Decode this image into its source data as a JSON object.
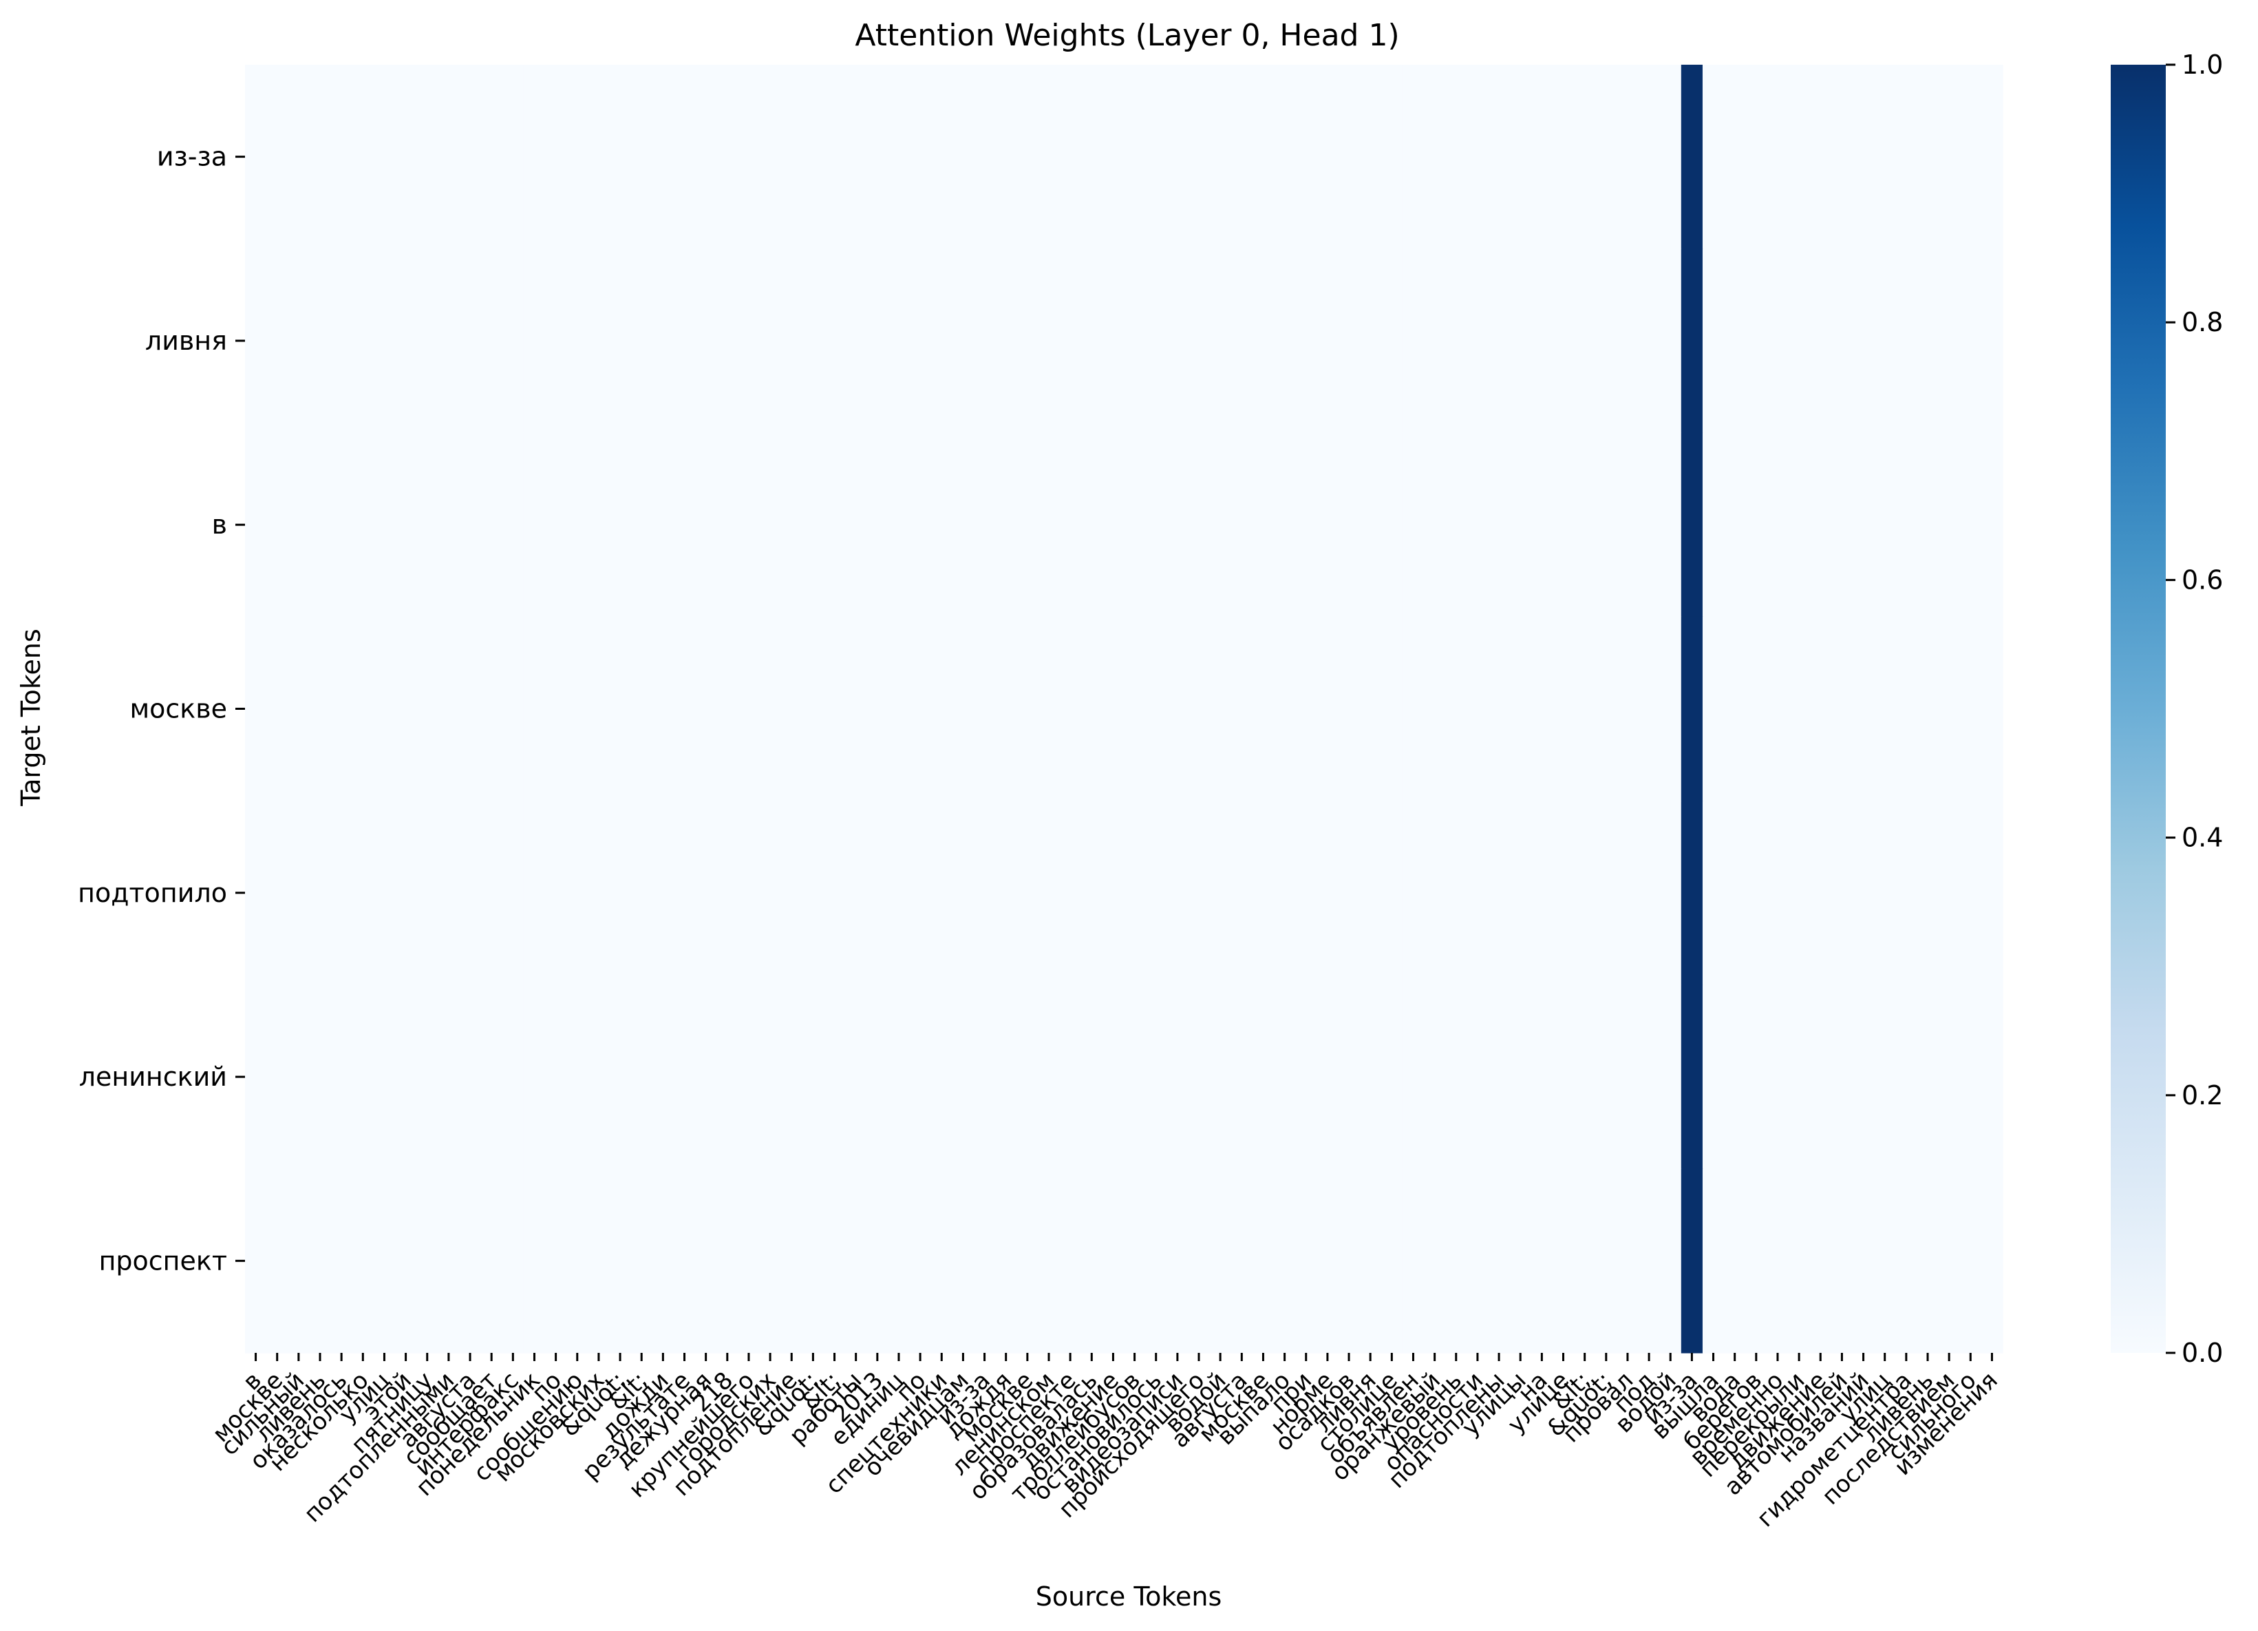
{
  "chart_data": {
    "type": "heatmap",
    "title": "Attention Weights (Layer 0, Head 1)",
    "xlabel": "Source Tokens",
    "ylabel": "Target Tokens",
    "y_tokens": [
      "из-за",
      "ливня",
      "в",
      "москве",
      "подтопило",
      "ленинский",
      "проспект"
    ],
    "x_tokens": [
      "в",
      "москве",
      "сильный",
      "ливень",
      "оказалось",
      "несколько",
      "улиц",
      "этой",
      "пятницу",
      "подтопленными",
      "августа",
      "сообщает",
      "интерфакс",
      "понедельник",
      "по",
      "сообщению",
      "московских",
      "&quot;",
      "&lt;",
      "дожди",
      "результате",
      "дежурная",
      "218",
      "крупнейшего",
      "городских",
      "подтопление",
      "&quot;",
      "&lt;",
      "работы",
      "2013",
      "единиц",
      "по",
      "спецтехники",
      "очевидцам",
      "из-за",
      "дождя",
      "москве",
      "ленинском",
      "проспекте",
      "образовалась",
      "движение",
      "троллейбусов",
      "остановилось",
      "видеозаписи",
      "происходящего",
      "водой",
      "августа",
      "москве",
      "выпало",
      "при",
      "норме",
      "осадков",
      "ливня",
      "столице",
      "объявлен",
      "оранжевый",
      "уровень",
      "опасности",
      "подтоплены",
      "улицы",
      "на",
      "улице",
      "&lt;",
      "&quot;",
      "провал",
      "под",
      "водой",
      "из-за",
      "вышла",
      "вода",
      "берегов",
      "временно",
      "перекрыли",
      "движение",
      "автомобилей",
      "названий",
      "улиц",
      "гидрометцентра",
      "ливень",
      "последствием",
      "сильного",
      "изменения"
    ],
    "values": "all cells 0.0 except source column 67 (из-за) = 1.0 for every target row",
    "highlight_column": 67,
    "highlight_value": 1.0,
    "base_value": 0.0,
    "colorscale": "Blues",
    "color_low": "#f7fbff",
    "color_high": "#08306b",
    "colorbar_ticks": [
      "0.0",
      "0.2",
      "0.4",
      "0.6",
      "0.8",
      "1.0"
    ],
    "vmin": 0.0,
    "vmax": 1.0
  }
}
